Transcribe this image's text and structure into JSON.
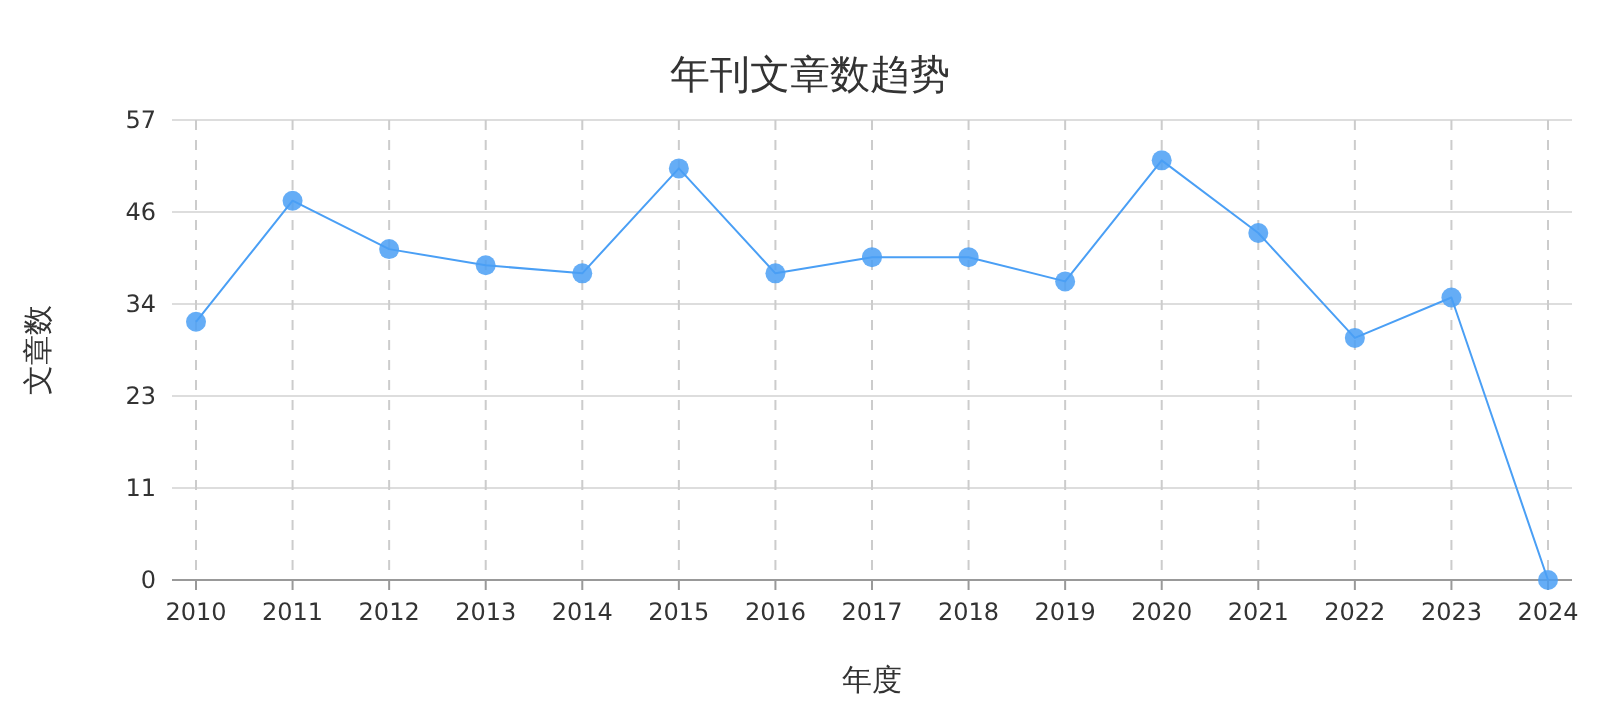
{
  "chart_data": {
    "type": "line",
    "title": "年刊文章数趋势",
    "xlabel": "年度",
    "ylabel": "文章数",
    "categories": [
      "2010",
      "2011",
      "2012",
      "2013",
      "2014",
      "2015",
      "2016",
      "2017",
      "2018",
      "2019",
      "2020",
      "2021",
      "2022",
      "2023",
      "2024"
    ],
    "series": [
      {
        "color": "#4a9ff5",
        "values": [
          32,
          47,
          41,
          39,
          38,
          51,
          38,
          40,
          40,
          37,
          52,
          43,
          30,
          35,
          0
        ]
      }
    ],
    "ylim": [
      0,
      57
    ],
    "yticks": [
      0,
      {
        "value": 11.4,
        "label": "11"
      },
      {
        "value": 22.8,
        "label": "23"
      },
      {
        "value": 34.2,
        "label": "34"
      },
      {
        "value": 45.6,
        "label": "46"
      },
      57
    ],
    "grid": true,
    "marker": "circle",
    "line_style": "solid"
  }
}
